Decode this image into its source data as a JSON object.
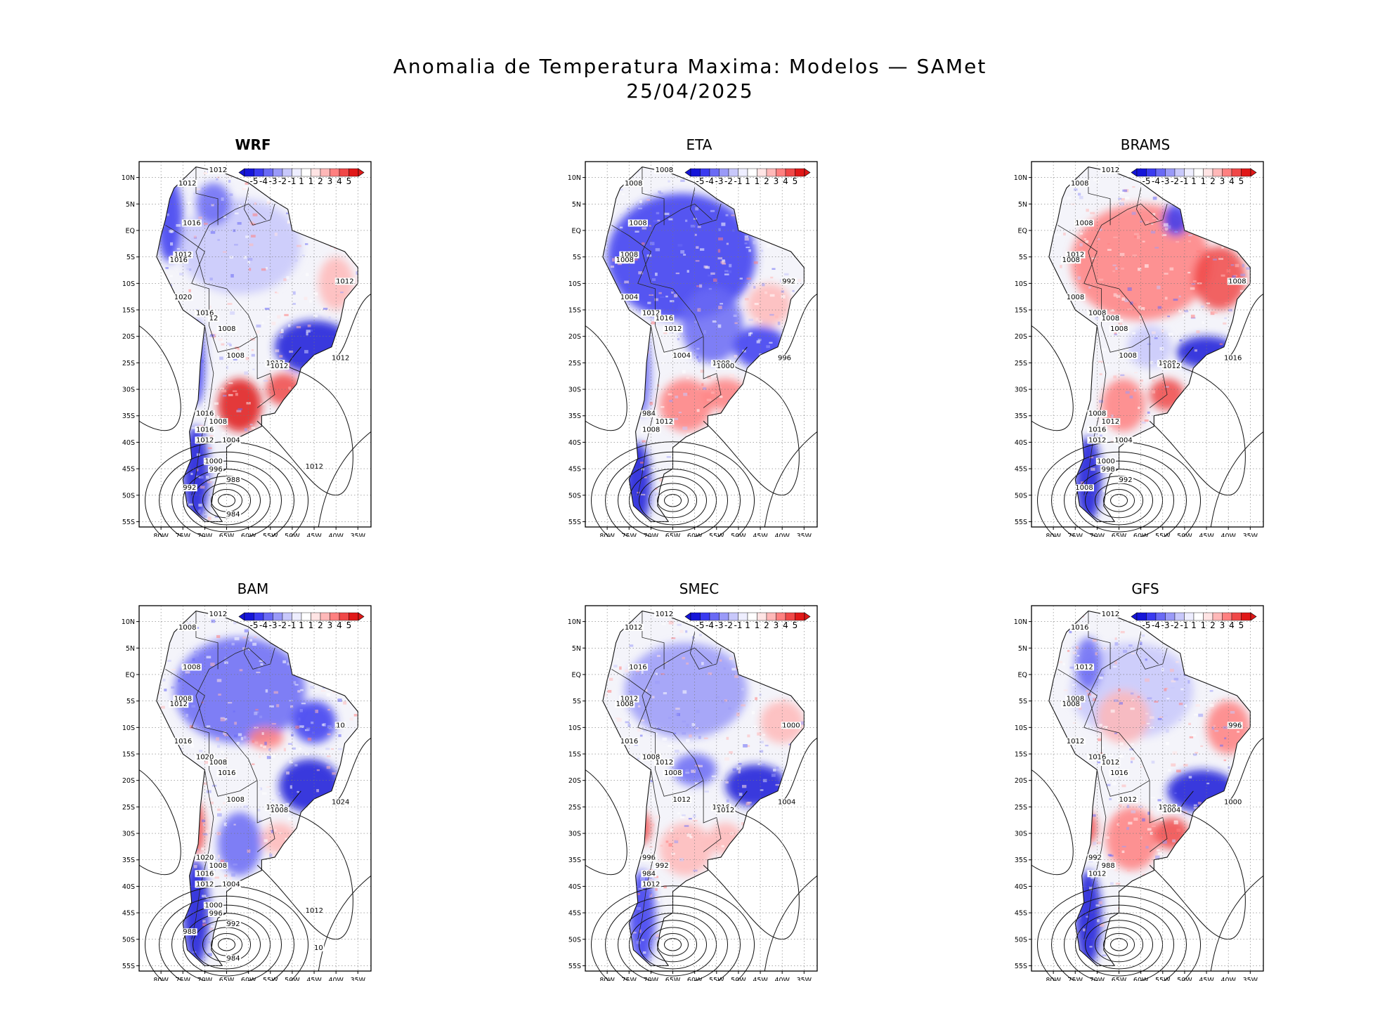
{
  "figure": {
    "title_line1": "Anomalia de Temperatura Maxima: Modelos — SAMet",
    "title_line2": "25/04/2025"
  },
  "axes": {
    "lat_labels": [
      "10N",
      "5N",
      "EQ",
      "5S",
      "10S",
      "15S",
      "20S",
      "25S",
      "30S",
      "35S",
      "40S",
      "45S",
      "50S",
      "55S"
    ],
    "lon_labels": [
      "80W",
      "75W",
      "70W",
      "65W",
      "60W",
      "55W",
      "50W",
      "45W",
      "40W",
      "35W"
    ]
  },
  "colorbar": {
    "labels": [
      "-5",
      "-4",
      "-3",
      "-2",
      "-1",
      "1",
      "1",
      "2",
      "3",
      "4",
      "5"
    ],
    "colors": [
      "#1515d8",
      "#3a3af0",
      "#6a6af5",
      "#9a9af8",
      "#c8c8fb",
      "#eeeeff",
      "#ffffff",
      "#ffe4e4",
      "#ffb8b8",
      "#ff8080",
      "#f04848",
      "#e01818"
    ]
  },
  "colors": {
    "warm": "#e83030",
    "cold": "#2030d8",
    "land": "#f4f4fa",
    "ocean": "#ffffff"
  },
  "panels": [
    {
      "name": "WRF",
      "bold": true,
      "isobars": [
        "1012",
        "1012",
        "1016",
        "1012",
        "1016",
        "1020",
        "1016",
        "12",
        "1008",
        "1008",
        "1012",
        "1012",
        "1012",
        "1012",
        "1016",
        "1008",
        "1016",
        "1012",
        "1004",
        "1000",
        "996",
        "988",
        "992",
        "984",
        "1012"
      ]
    },
    {
      "name": "ETA",
      "bold": false,
      "isobars": [
        "1008",
        "1008",
        "1008",
        "1008",
        "1008",
        "1004",
        "1012",
        "1016",
        "1012",
        "1004",
        "1008",
        "1000",
        "996",
        "992",
        "984",
        "1012",
        "1008"
      ]
    },
    {
      "name": "BRAMS",
      "bold": false,
      "isobars": [
        "1012",
        "1008",
        "1008",
        "1012",
        "1008",
        "1008",
        "1008",
        "1008",
        "1008",
        "1008",
        "1008",
        "1012",
        "1016",
        "1008",
        "1008",
        "1012",
        "1016",
        "1012",
        "1004",
        "1000",
        "998",
        "992",
        "1008"
      ]
    },
    {
      "name": "BAM",
      "bold": false,
      "isobars": [
        "1012",
        "1008",
        "1008",
        "1008",
        "1012",
        "1016",
        "1020",
        "1008",
        "1016",
        "1008",
        "1012",
        "1008",
        "1024",
        "10",
        "1020",
        "1008",
        "1016",
        "1012",
        "1004",
        "1000",
        "996",
        "992",
        "988",
        "984",
        "1012",
        "10"
      ]
    },
    {
      "name": "SMEC",
      "bold": false,
      "isobars": [
        "1012",
        "1012",
        "1016",
        "1012",
        "1008",
        "1016",
        "1008",
        "1012",
        "1008",
        "1012",
        "1016",
        "1012",
        "1004",
        "1000",
        "996",
        "992",
        "984",
        "1012"
      ]
    },
    {
      "name": "GFS",
      "bold": false,
      "isobars": [
        "1012",
        "1016",
        "1012",
        "1008",
        "1008",
        "1012",
        "1016",
        "1012",
        "1016",
        "1012",
        "1008",
        "1004",
        "1000",
        "996",
        "992",
        "988",
        "1012"
      ]
    }
  ]
}
